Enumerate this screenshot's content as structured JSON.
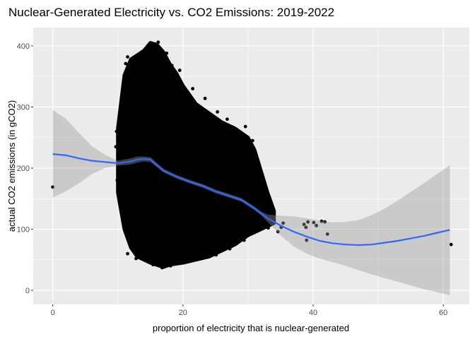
{
  "chart_data": {
    "type": "scatter",
    "title": "Nuclear-Generated Electricity vs. CO2 Emissions: 2019-2022",
    "xlabel": "proportion of electricity that is nuclear-generated",
    "ylabel": "actual CO2 emissions (in gCO2)",
    "xlim": [
      -3,
      64
    ],
    "ylim": [
      -23,
      430
    ],
    "x_ticks": [
      0,
      20,
      40,
      60
    ],
    "y_ticks": [
      0,
      100,
      200,
      300,
      400
    ],
    "grid": true,
    "legend": "none",
    "colors": {
      "panel": "#EBEBEB",
      "grid": "#FFFFFF",
      "points": "#000000",
      "smooth": "#3366FF",
      "ribbon": "#999999"
    },
    "cloud": {
      "description": "dense point cloud",
      "x_range": [
        10,
        35
      ],
      "upper_edge": [
        [
          10,
          265
        ],
        [
          11,
          352
        ],
        [
          12,
          378
        ],
        [
          14,
          392
        ],
        [
          15,
          405
        ],
        [
          16,
          402
        ],
        [
          17,
          390
        ],
        [
          18,
          370
        ],
        [
          19,
          355
        ],
        [
          20,
          335
        ],
        [
          22,
          305
        ],
        [
          24,
          290
        ],
        [
          26,
          275
        ],
        [
          28,
          265
        ],
        [
          30,
          250
        ],
        [
          31,
          230
        ],
        [
          32,
          195
        ],
        [
          33,
          160
        ],
        [
          34,
          130
        ]
      ],
      "lower_edge": [
        [
          10,
          160
        ],
        [
          11,
          100
        ],
        [
          12,
          70
        ],
        [
          13,
          55
        ],
        [
          15,
          45
        ],
        [
          17,
          38
        ],
        [
          18,
          42
        ],
        [
          20,
          45
        ],
        [
          22,
          50
        ],
        [
          24,
          55
        ],
        [
          26,
          65
        ],
        [
          28,
          75
        ],
        [
          30,
          90
        ],
        [
          32,
          100
        ],
        [
          34,
          110
        ]
      ]
    },
    "points": [
      {
        "x": 0,
        "y": 169
      },
      {
        "x": 9.8,
        "y": 260
      },
      {
        "x": 9.7,
        "y": 235
      },
      {
        "x": 9.9,
        "y": 180
      },
      {
        "x": 11.2,
        "y": 371
      },
      {
        "x": 11.5,
        "y": 382
      },
      {
        "x": 12.3,
        "y": 358
      },
      {
        "x": 13.5,
        "y": 384
      },
      {
        "x": 14.8,
        "y": 395
      },
      {
        "x": 15.2,
        "y": 402
      },
      {
        "x": 15.6,
        "y": 398
      },
      {
        "x": 16.2,
        "y": 406
      },
      {
        "x": 17.5,
        "y": 388
      },
      {
        "x": 18.3,
        "y": 368
      },
      {
        "x": 19.5,
        "y": 360
      },
      {
        "x": 21.5,
        "y": 330
      },
      {
        "x": 23.4,
        "y": 314
      },
      {
        "x": 25.3,
        "y": 292
      },
      {
        "x": 26.8,
        "y": 280
      },
      {
        "x": 28.2,
        "y": 260
      },
      {
        "x": 29.6,
        "y": 268
      },
      {
        "x": 30.7,
        "y": 245
      },
      {
        "x": 29.9,
        "y": 230
      },
      {
        "x": 30.8,
        "y": 200
      },
      {
        "x": 31.6,
        "y": 170
      },
      {
        "x": 32.6,
        "y": 145
      },
      {
        "x": 11.5,
        "y": 60
      },
      {
        "x": 12.8,
        "y": 52
      },
      {
        "x": 13.6,
        "y": 72
      },
      {
        "x": 15.4,
        "y": 42
      },
      {
        "x": 16.8,
        "y": 37
      },
      {
        "x": 18.1,
        "y": 40
      },
      {
        "x": 20.6,
        "y": 48
      },
      {
        "x": 22.8,
        "y": 53
      },
      {
        "x": 25.1,
        "y": 58
      },
      {
        "x": 27.2,
        "y": 68
      },
      {
        "x": 29.4,
        "y": 82
      },
      {
        "x": 31.2,
        "y": 98
      },
      {
        "x": 33.1,
        "y": 102
      },
      {
        "x": 34.0,
        "y": 110
      },
      {
        "x": 34.6,
        "y": 96
      },
      {
        "x": 35.1,
        "y": 103
      },
      {
        "x": 35.4,
        "y": 110
      },
      {
        "x": 38.6,
        "y": 108
      },
      {
        "x": 38.9,
        "y": 103
      },
      {
        "x": 39.2,
        "y": 112
      },
      {
        "x": 39.0,
        "y": 82
      },
      {
        "x": 40.1,
        "y": 111
      },
      {
        "x": 40.5,
        "y": 106
      },
      {
        "x": 41.3,
        "y": 113
      },
      {
        "x": 41.8,
        "y": 112
      },
      {
        "x": 42.2,
        "y": 92
      },
      {
        "x": 61.2,
        "y": 75
      }
    ],
    "smooth": {
      "x": [
        0,
        2,
        4,
        6,
        8,
        10,
        12,
        13,
        14,
        15,
        17,
        19,
        21,
        23,
        25,
        27,
        29,
        31,
        32,
        33,
        35,
        37,
        39,
        41,
        43,
        45,
        47,
        49,
        51,
        53,
        55,
        57,
        59,
        61
      ],
      "y": [
        223,
        221,
        216,
        212,
        210,
        208,
        211,
        214,
        215,
        214,
        196,
        186,
        178,
        171,
        162,
        155,
        148,
        134,
        126,
        118,
        106,
        96,
        88,
        81,
        77,
        75,
        74,
        75,
        78,
        81,
        85,
        89,
        94,
        99
      ],
      "lower": [
        152,
        162,
        175,
        190,
        200,
        204,
        206,
        209,
        211,
        210,
        193,
        183,
        175,
        168,
        159,
        152,
        145,
        131,
        123,
        112,
        90,
        72,
        60,
        52,
        46,
        40,
        33,
        26,
        20,
        14,
        8,
        2,
        -3,
        -8
      ],
      "upper": [
        295,
        281,
        258,
        236,
        222,
        212,
        216,
        219,
        219,
        218,
        199,
        189,
        181,
        174,
        165,
        158,
        151,
        137,
        129,
        124,
        122,
        121,
        118,
        114,
        111,
        112,
        115,
        123,
        134,
        147,
        161,
        175,
        190,
        205
      ]
    }
  }
}
